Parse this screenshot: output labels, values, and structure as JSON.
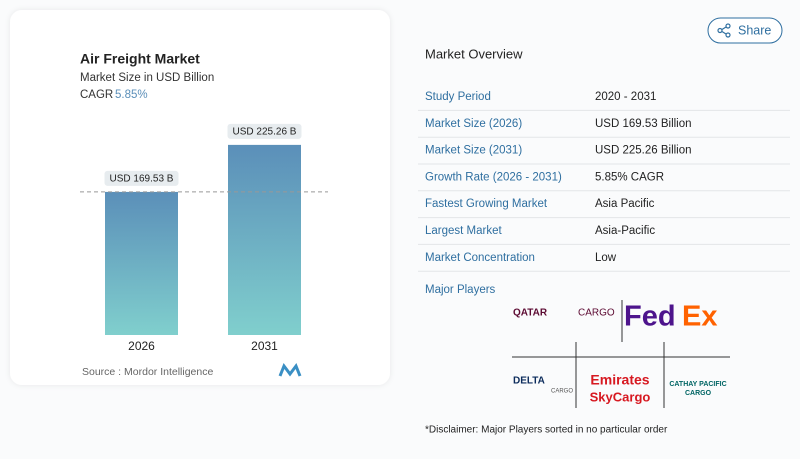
{
  "share": "Share",
  "chart_data": {
    "type": "bar",
    "title": "Air Freight Market",
    "subtitle": "Market Size in USD Billion",
    "cagr_label": "CAGR",
    "cagr_value": "5.85%",
    "categories": [
      "2026",
      "2031"
    ],
    "values": [
      169.53,
      225.26
    ],
    "value_labels": [
      "USD 169.53 B",
      "USD 225.26 B"
    ],
    "ylim": [
      0,
      250
    ],
    "colors": [
      "#5b8fb9",
      "#80cfcd"
    ],
    "source": "Source :  Mordor Intelligence"
  },
  "overview": {
    "title": "Market Overview",
    "rows": [
      [
        "Study Period",
        "2020 - 2031"
      ],
      [
        "Market Size (2026)",
        "USD 169.53 Billion"
      ],
      [
        "Market Size (2031)",
        "USD 225.26 Billion"
      ],
      [
        "Growth Rate (2026 - 2031)",
        "5.85% CAGR"
      ],
      [
        "Fastest Growing Market",
        "Asia Pacific"
      ],
      [
        "Largest Market",
        "Asia-Pacific"
      ],
      [
        "Market Concentration",
        "Low"
      ]
    ]
  },
  "players": {
    "title": "Major Players",
    "qatar": [
      "QATAR",
      "CARGO"
    ],
    "fedex": [
      "Fed",
      "Ex"
    ],
    "delta": [
      "DELTA",
      "CARGO"
    ],
    "emirates": [
      "Emirates",
      "SkyCargo"
    ],
    "cathay": [
      "CATHAY PACIFIC",
      "CARGO"
    ]
  },
  "disclaimer": "*Disclaimer: Major Players sorted in no particular order"
}
